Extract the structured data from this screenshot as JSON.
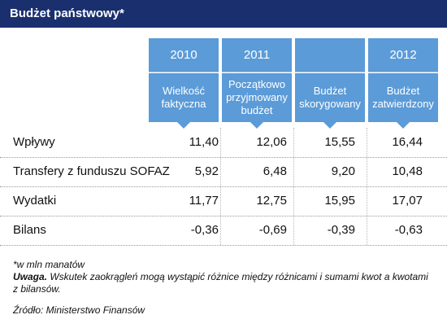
{
  "title": "Budżet państwowy*",
  "chart_data": {
    "type": "table",
    "columns": [
      {
        "year": "2010",
        "desc": "Wielkość faktyczna"
      },
      {
        "year": "2011",
        "desc": "Początkowo przyjmowany budżet"
      },
      {
        "year": "",
        "desc": "Budżet skorygowany"
      },
      {
        "year": "2012",
        "desc": "Budżet zatwierdzony"
      }
    ],
    "rows": [
      {
        "label": "Wpływy",
        "values": [
          "11,40",
          "12,06",
          "15,55",
          "16,44"
        ]
      },
      {
        "label": "Transfery z funduszu SOFAZ",
        "values": [
          "5,92",
          "6,48",
          "9,20",
          "10,48"
        ]
      },
      {
        "label": "Wydatki",
        "values": [
          "11,77",
          "12,75",
          "15,95",
          "17,07"
        ]
      },
      {
        "label": "Bilans",
        "values": [
          "-0,36",
          "-0,69",
          "-0,39",
          "-0,63"
        ]
      }
    ]
  },
  "notes": {
    "unit": "*w mln manatów",
    "warning_label": "Uwaga.",
    "warning_text": " Wskutek zaokrągleń mogą wystąpić różnice między różnicami i sumami kwot a kwotami z bilansów.",
    "source": "Źródło: Ministerstwo Finansów"
  },
  "colors": {
    "title_bg": "#1a2f6e",
    "header_bg": "#5b9bd8"
  }
}
